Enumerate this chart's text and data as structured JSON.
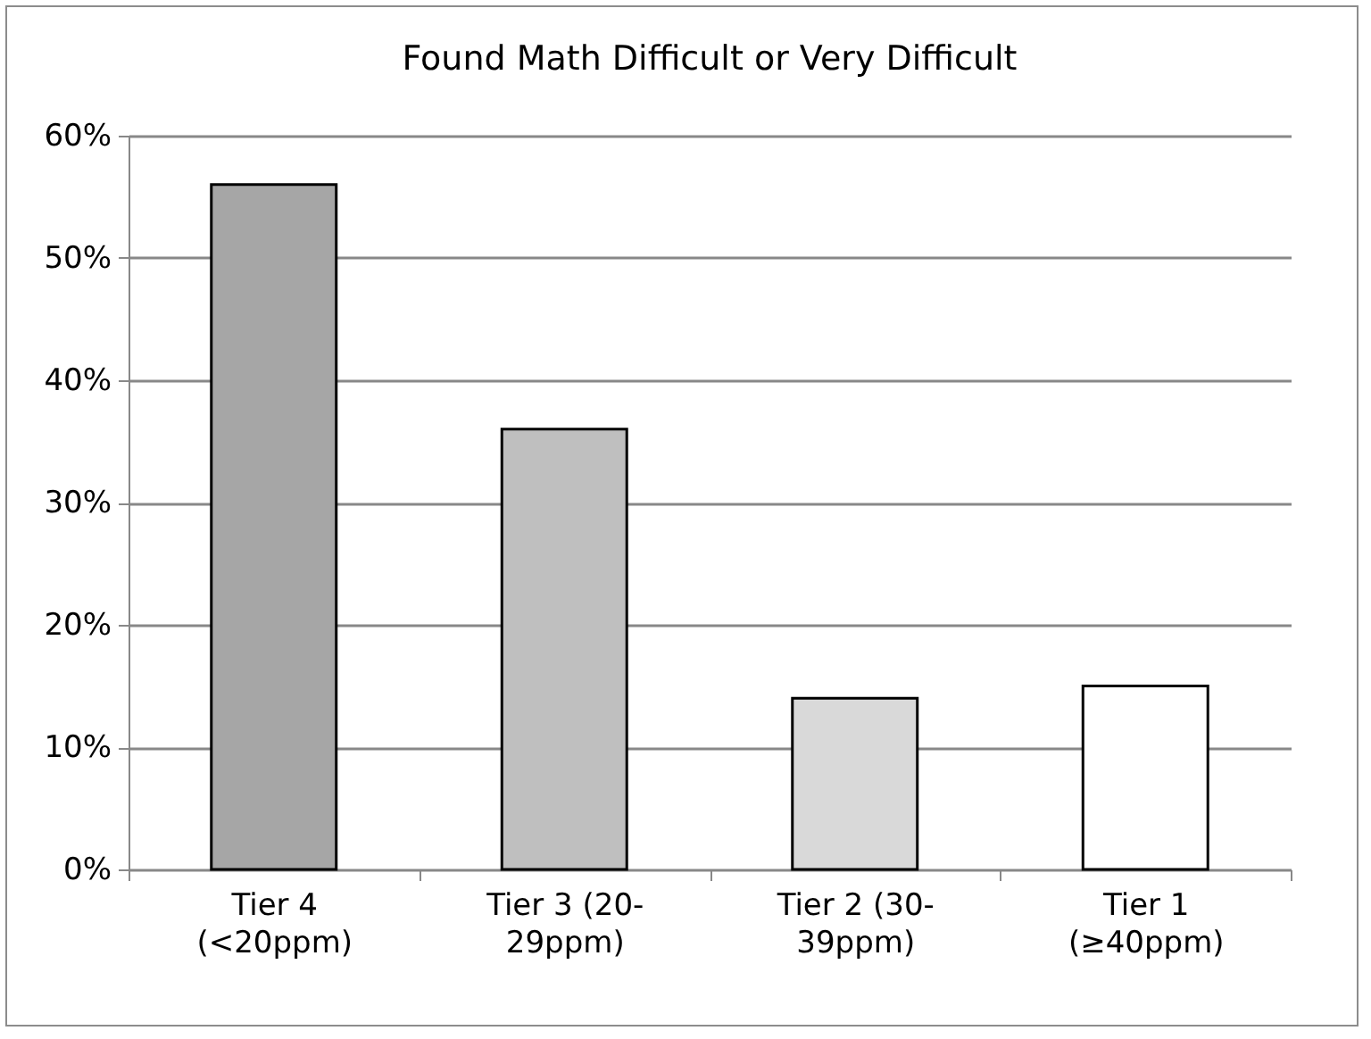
{
  "chart_data": {
    "type": "bar",
    "title": "Found Math Difficult or Very Difficult",
    "categories": [
      "Tier 4 (<20ppm)",
      "Tier 3 (20-29ppm)",
      "Tier 2 (30-39ppm)",
      "Tier 1 (≥40ppm)"
    ],
    "values": [
      56,
      36,
      14,
      15
    ],
    "colors": [
      "#a6a6a6",
      "#bfbfbf",
      "#d9d9d9",
      "#ffffff"
    ],
    "ylim": [
      0,
      60
    ],
    "yticks": [
      {
        "value": 0,
        "label": "0%"
      },
      {
        "value": 10,
        "label": "10%"
      },
      {
        "value": 20,
        "label": "20%"
      },
      {
        "value": 30,
        "label": "30%"
      },
      {
        "value": 40,
        "label": "40%"
      },
      {
        "value": 50,
        "label": "50%"
      },
      {
        "value": 60,
        "label": "60%"
      }
    ],
    "grid": "y"
  }
}
